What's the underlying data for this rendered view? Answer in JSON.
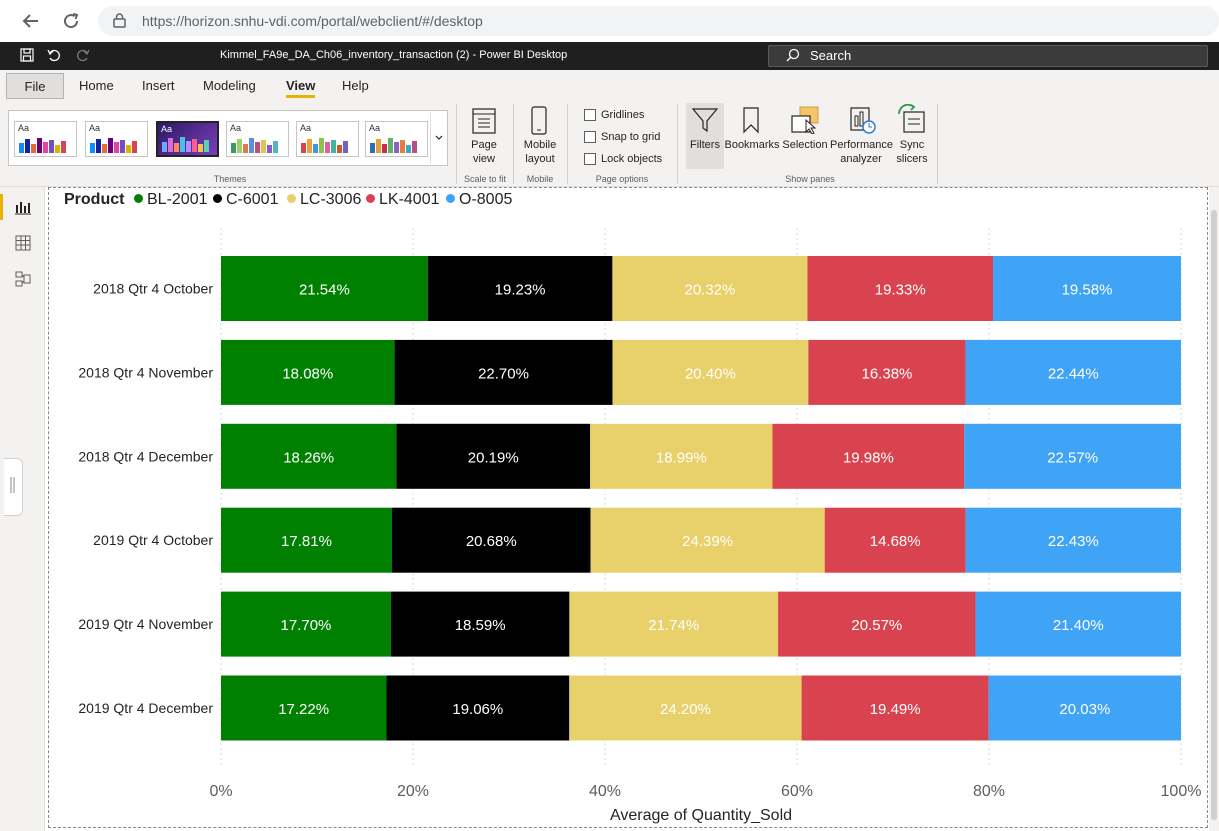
{
  "browser": {
    "url": "https://horizon.snhu-vdi.com/portal/webclient/#/desktop"
  },
  "titlebar": {
    "title": "Kimmel_FA9e_DA_Ch06_inventory_transaction (2) - Power BI Desktop",
    "search_placeholder": "Search"
  },
  "menu": {
    "tabs": [
      "File",
      "Home",
      "Insert",
      "Modeling",
      "View",
      "Help"
    ],
    "active": "View"
  },
  "ribbon": {
    "themes_label": "Themes",
    "page_view_label": "Page view",
    "scale_to_fit_label": "Scale to fit",
    "mobile_layout_label": "Mobile layout",
    "mobile_label": "Mobile",
    "gridlines_label": "Gridlines",
    "snap_to_grid_label": "Snap to grid",
    "lock_objects_label": "Lock objects",
    "page_options_label": "Page options",
    "filters_label": "Filters",
    "bookmarks_label": "Bookmarks",
    "selection_label": "Selection",
    "performance_label": "Performance analyzer",
    "sync_slicers_label": "Sync slicers",
    "show_panes_label": "Show panes",
    "theme_aa": "Aa"
  },
  "colors": {
    "accent": "#e8b200",
    "BL-2001": "#008000",
    "C-6001": "#000000",
    "LC-3006": "#e8d06a",
    "LK-4001": "#d9434f",
    "O-8005": "#3fa3f6"
  },
  "chart_data": {
    "type": "bar",
    "orientation": "horizontal",
    "stacking": "100%",
    "legend_title": "Product",
    "legend_position": "top-left",
    "categories": [
      "2018 Qtr 4 October",
      "2018 Qtr 4 November",
      "2018 Qtr 4 December",
      "2019 Qtr 4 October",
      "2019 Qtr 4 November",
      "2019 Qtr 4 December"
    ],
    "series": [
      {
        "name": "BL-2001",
        "color": "#008000",
        "label_color": "#ffffff",
        "values": [
          21.54,
          18.08,
          18.26,
          17.81,
          17.7,
          17.22
        ]
      },
      {
        "name": "C-6001",
        "color": "#000000",
        "label_color": "#ffffff",
        "values": [
          19.23,
          22.7,
          20.19,
          20.68,
          18.59,
          19.06
        ]
      },
      {
        "name": "LC-3006",
        "color": "#e8d06a",
        "label_color": "#ffffff",
        "values": [
          20.32,
          20.4,
          18.99,
          24.39,
          21.74,
          24.2
        ]
      },
      {
        "name": "LK-4001",
        "color": "#d9434f",
        "label_color": "#ffffff",
        "values": [
          19.33,
          16.38,
          19.98,
          14.68,
          20.57,
          19.49
        ]
      },
      {
        "name": "O-8005",
        "color": "#3fa3f6",
        "label_color": "#ffffff",
        "values": [
          19.58,
          22.44,
          22.57,
          22.43,
          21.4,
          20.03
        ]
      }
    ],
    "xlim": [
      0,
      100
    ],
    "xticks": [
      "0%",
      "20%",
      "40%",
      "60%",
      "80%",
      "100%"
    ],
    "xlabel": "Average of Quantity_Sold",
    "ylabel": "",
    "grid": true
  }
}
